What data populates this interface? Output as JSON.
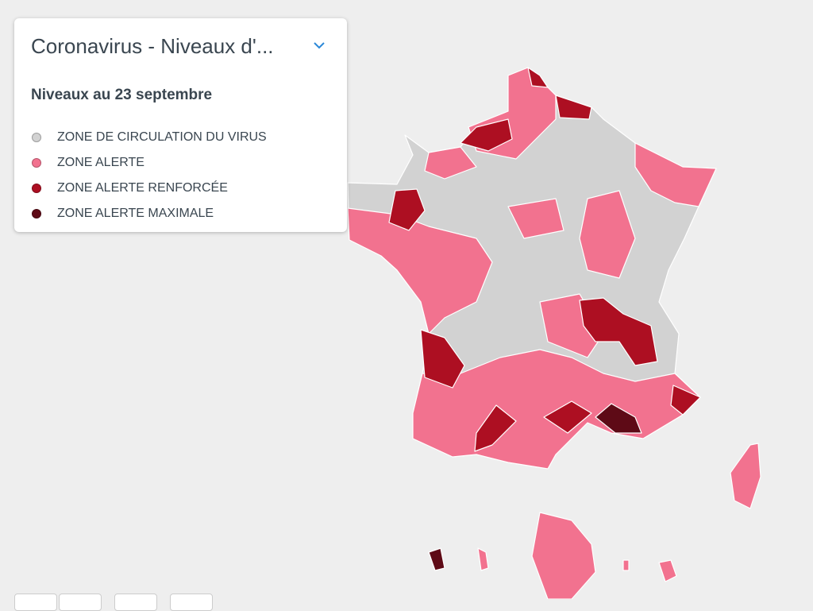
{
  "panel": {
    "title": "Coronavirus - Niveaux d'...",
    "subtitle": "Niveaux au 23 septembre",
    "legend": [
      {
        "label": "ZONE DE CIRCULATION DU VIRUS",
        "color": "#d2d2d2"
      },
      {
        "label": "ZONE ALERTE",
        "color": "#f2728f"
      },
      {
        "label": "ZONE ALERTE RENFORCÉE",
        "color": "#ad0f22"
      },
      {
        "label": "ZONE ALERTE MAXIMALE",
        "color": "#5e0a16"
      }
    ]
  }
}
